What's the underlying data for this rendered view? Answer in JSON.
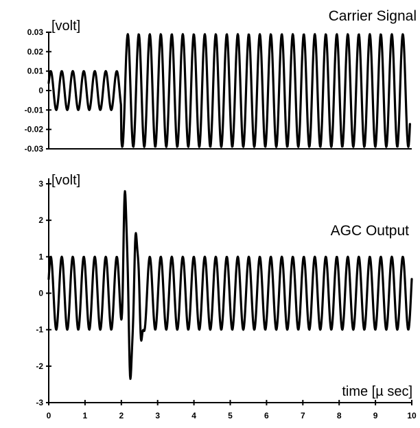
{
  "chart_data": [
    {
      "type": "line",
      "title": "Carrier Signal",
      "ylabel": "[volt]",
      "xlim": [
        0,
        10
      ],
      "ylim": [
        -0.03,
        0.03
      ],
      "yticks": [
        "0.03",
        "0.02",
        "0.01",
        "0",
        "-0.01",
        "-0.02",
        "-0.03"
      ],
      "ytick_values": [
        0.03,
        0.02,
        0.01,
        0,
        -0.01,
        -0.02,
        -0.03
      ],
      "grid": false,
      "series": [
        {
          "segments": [
            {
              "x_start": 0.0,
              "x_end": 2.0,
              "amplitude": 0.01,
              "cycles_per_usec": 3.3
            },
            {
              "x_start": 2.0,
              "x_end": 9.95,
              "amplitude": 0.029,
              "cycles_per_usec": 3.3
            }
          ]
        }
      ]
    },
    {
      "type": "line",
      "title": "AGC Output",
      "ylabel": "[volt]",
      "xlabel": "time [µ sec]",
      "xlim": [
        0,
        10
      ],
      "ylim": [
        -3,
        3
      ],
      "xticks": [
        "0",
        "1",
        "2",
        "3",
        "4",
        "5",
        "6",
        "7",
        "8",
        "9",
        "10"
      ],
      "xtick_values": [
        0,
        1,
        2,
        3,
        4,
        5,
        6,
        7,
        8,
        9,
        10
      ],
      "yticks": [
        "3",
        "2",
        "1",
        "0",
        "-1",
        "-2",
        "-3"
      ],
      "ytick_values": [
        3,
        2,
        1,
        0,
        -1,
        -2,
        -3
      ],
      "grid": false,
      "series": [
        {
          "steady_amplitude": 1.0,
          "cycles_per_usec": 3.3,
          "transient": [
            {
              "x": 2.1,
              "y": 2.8
            },
            {
              "x": 2.25,
              "y": -2.35
            },
            {
              "x": 2.4,
              "y": 1.65
            },
            {
              "x": 2.55,
              "y": -1.3
            }
          ]
        }
      ]
    }
  ]
}
